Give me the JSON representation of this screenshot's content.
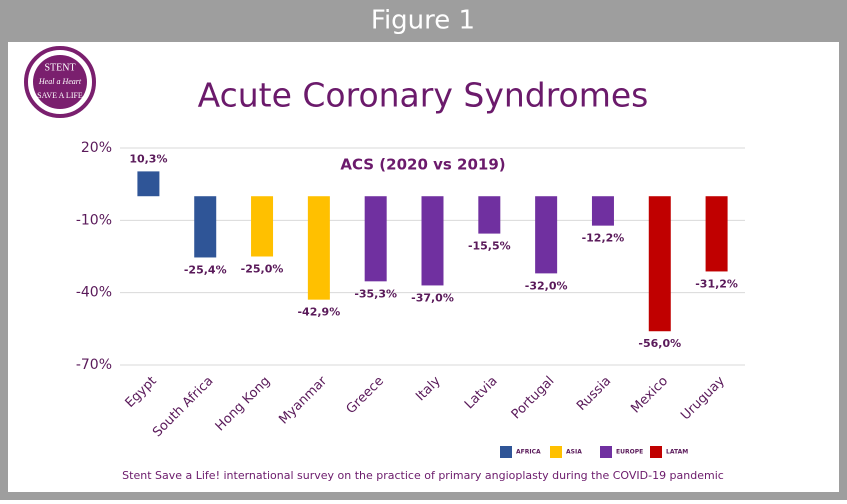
{
  "header": {
    "title": "Figure 1"
  },
  "logo": {
    "top": "STENT",
    "middle": "Heal a Heart",
    "bottom": "SAVE A LIFE"
  },
  "chart_data": {
    "type": "bar",
    "title": "Acute Coronary Syndromes",
    "subtitle": "ACS (2020 vs 2019)",
    "footnote": "Stent Save a Life! international survey on the practice of primary angioplasty during the COVID-19 pandemic",
    "categories": [
      "Egypt",
      "South Africa",
      "Hong Kong",
      "Myanmar",
      "Greece",
      "Italy",
      "Latvia",
      "Portugal",
      "Russia",
      "Mexico",
      "Uruguay"
    ],
    "series": [
      {
        "name": "AFRICA",
        "color": "#2f5597",
        "values": [
          10.3,
          -25.4,
          null,
          null,
          null,
          null,
          null,
          null,
          null,
          null,
          null
        ],
        "value_labels": [
          "10,3%",
          "-25,4%",
          null,
          null,
          null,
          null,
          null,
          null,
          null,
          null,
          null
        ]
      },
      {
        "name": "ASIA",
        "color": "#ffc000",
        "values": [
          null,
          null,
          -25.0,
          -42.9,
          null,
          null,
          null,
          null,
          null,
          null,
          null
        ],
        "value_labels": [
          null,
          null,
          "-25,0%",
          "-42,9%",
          null,
          null,
          null,
          null,
          null,
          null,
          null
        ]
      },
      {
        "name": "EUROPE",
        "color": "#7030a0",
        "values": [
          null,
          null,
          null,
          null,
          -35.3,
          -37.0,
          -15.5,
          -32.0,
          -12.2,
          null,
          null
        ],
        "value_labels": [
          null,
          null,
          null,
          null,
          "-35,3%",
          "-37,0%",
          "-15,5%",
          "-32,0%",
          "-12,2%",
          null,
          null
        ]
      },
      {
        "name": "LATAM",
        "color": "#c00000",
        "values": [
          null,
          null,
          null,
          null,
          null,
          null,
          null,
          null,
          null,
          -56.0,
          -31.2
        ],
        "value_labels": [
          null,
          null,
          null,
          null,
          null,
          null,
          null,
          null,
          null,
          "-56,0%",
          "-31,2%"
        ]
      }
    ],
    "ylim": [
      -70,
      20
    ],
    "yticks": [
      {
        "value": 20,
        "label": "20%"
      },
      {
        "value": -10,
        "label": "-10%"
      },
      {
        "value": -40,
        "label": "-40%"
      },
      {
        "value": -70,
        "label": "-70%"
      }
    ],
    "grid": true
  }
}
